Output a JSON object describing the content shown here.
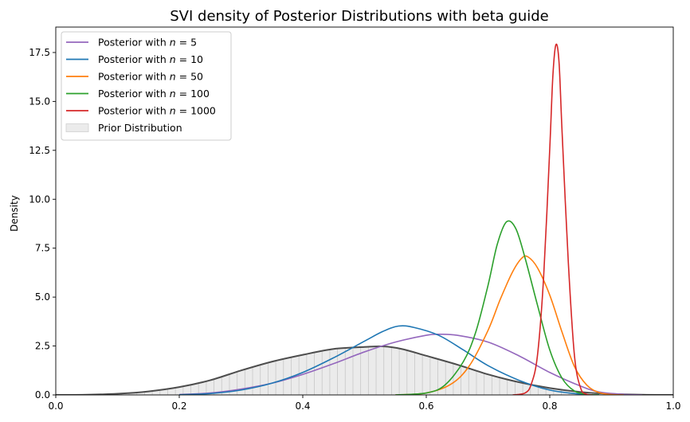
{
  "chart_data": {
    "type": "line",
    "title": "SVI density of Posterior Distributions with beta guide",
    "xlabel": "",
    "ylabel": "Density",
    "xlim": [
      0.0,
      1.0
    ],
    "ylim": [
      0.0,
      18.8
    ],
    "x_ticks": [
      "0.0",
      "0.2",
      "0.4",
      "0.6",
      "0.8",
      "1.0"
    ],
    "y_ticks": [
      "0.0",
      "2.5",
      "5.0",
      "7.5",
      "10.0",
      "12.5",
      "15.0",
      "17.5"
    ],
    "grid": false,
    "legend_position": "upper-left",
    "series": [
      {
        "name": "Posterior with $n = 5$",
        "legend_label": "Posterior with ",
        "n_value": "5",
        "color": "#9467bd",
        "points": [
          [
            0.2,
            0.02
          ],
          [
            0.25,
            0.1
          ],
          [
            0.3,
            0.3
          ],
          [
            0.35,
            0.6
          ],
          [
            0.4,
            1.05
          ],
          [
            0.45,
            1.6
          ],
          [
            0.5,
            2.2
          ],
          [
            0.55,
            2.7
          ],
          [
            0.6,
            3.05
          ],
          [
            0.62,
            3.1
          ],
          [
            0.65,
            3.05
          ],
          [
            0.7,
            2.7
          ],
          [
            0.75,
            2.0
          ],
          [
            0.8,
            1.15
          ],
          [
            0.85,
            0.45
          ],
          [
            0.88,
            0.15
          ],
          [
            0.92,
            0.03
          ],
          [
            0.95,
            0.0
          ]
        ]
      },
      {
        "name": "Posterior with $n = 10$",
        "legend_label": "Posterior with ",
        "n_value": "10",
        "color": "#1f77b4",
        "points": [
          [
            0.2,
            0.01
          ],
          [
            0.25,
            0.07
          ],
          [
            0.3,
            0.25
          ],
          [
            0.35,
            0.6
          ],
          [
            0.4,
            1.15
          ],
          [
            0.45,
            1.9
          ],
          [
            0.5,
            2.75
          ],
          [
            0.53,
            3.25
          ],
          [
            0.555,
            3.52
          ],
          [
            0.58,
            3.45
          ],
          [
            0.62,
            3.05
          ],
          [
            0.66,
            2.3
          ],
          [
            0.7,
            1.5
          ],
          [
            0.75,
            0.75
          ],
          [
            0.8,
            0.25
          ],
          [
            0.85,
            0.04
          ],
          [
            0.88,
            0.0
          ]
        ]
      },
      {
        "name": "Posterior with $n = 50$",
        "legend_label": "Posterior with ",
        "n_value": "50",
        "color": "#ff7f0e",
        "points": [
          [
            0.55,
            0.0
          ],
          [
            0.6,
            0.1
          ],
          [
            0.64,
            0.55
          ],
          [
            0.67,
            1.5
          ],
          [
            0.7,
            3.3
          ],
          [
            0.72,
            4.9
          ],
          [
            0.74,
            6.3
          ],
          [
            0.755,
            7.0
          ],
          [
            0.765,
            7.05
          ],
          [
            0.78,
            6.5
          ],
          [
            0.8,
            5.1
          ],
          [
            0.82,
            3.2
          ],
          [
            0.84,
            1.45
          ],
          [
            0.86,
            0.5
          ],
          [
            0.88,
            0.12
          ],
          [
            0.9,
            0.02
          ],
          [
            0.92,
            0.0
          ]
        ]
      },
      {
        "name": "Posterior with $n = 100$",
        "legend_label": "Posterior with ",
        "n_value": "100",
        "color": "#2ca02c",
        "points": [
          [
            0.55,
            0.0
          ],
          [
            0.6,
            0.1
          ],
          [
            0.63,
            0.5
          ],
          [
            0.66,
            1.7
          ],
          [
            0.68,
            3.2
          ],
          [
            0.7,
            5.6
          ],
          [
            0.715,
            7.7
          ],
          [
            0.73,
            8.85
          ],
          [
            0.745,
            8.5
          ],
          [
            0.76,
            7.0
          ],
          [
            0.78,
            4.6
          ],
          [
            0.8,
            2.3
          ],
          [
            0.82,
            0.85
          ],
          [
            0.84,
            0.2
          ],
          [
            0.86,
            0.03
          ],
          [
            0.88,
            0.0
          ]
        ]
      },
      {
        "name": "Posterior with $n = 1000$",
        "legend_label": "Posterior with ",
        "n_value": "1000",
        "color": "#d62728",
        "points": [
          [
            0.74,
            0.0
          ],
          [
            0.76,
            0.1
          ],
          [
            0.77,
            0.55
          ],
          [
            0.78,
            2.0
          ],
          [
            0.79,
            6.0
          ],
          [
            0.8,
            12.6
          ],
          [
            0.805,
            16.3
          ],
          [
            0.81,
            17.9
          ],
          [
            0.815,
            17.0
          ],
          [
            0.82,
            13.4
          ],
          [
            0.83,
            6.8
          ],
          [
            0.84,
            2.0
          ],
          [
            0.85,
            0.35
          ],
          [
            0.86,
            0.03
          ],
          [
            0.87,
            0.0
          ]
        ]
      }
    ],
    "prior": {
      "name": "Prior Distribution",
      "fill_color": "#d3d3d3",
      "line_color": "#4d4d4d",
      "points": [
        [
          0.0,
          0.0
        ],
        [
          0.05,
          0.01
        ],
        [
          0.1,
          0.06
        ],
        [
          0.15,
          0.18
        ],
        [
          0.2,
          0.4
        ],
        [
          0.25,
          0.75
        ],
        [
          0.3,
          1.25
        ],
        [
          0.35,
          1.7
        ],
        [
          0.4,
          2.05
        ],
        [
          0.45,
          2.35
        ],
        [
          0.5,
          2.45
        ],
        [
          0.53,
          2.48
        ],
        [
          0.56,
          2.35
        ],
        [
          0.6,
          2.0
        ],
        [
          0.65,
          1.55
        ],
        [
          0.7,
          1.05
        ],
        [
          0.75,
          0.65
        ],
        [
          0.8,
          0.35
        ],
        [
          0.85,
          0.15
        ],
        [
          0.9,
          0.05
        ],
        [
          0.95,
          0.01
        ],
        [
          1.0,
          0.0
        ]
      ]
    }
  }
}
